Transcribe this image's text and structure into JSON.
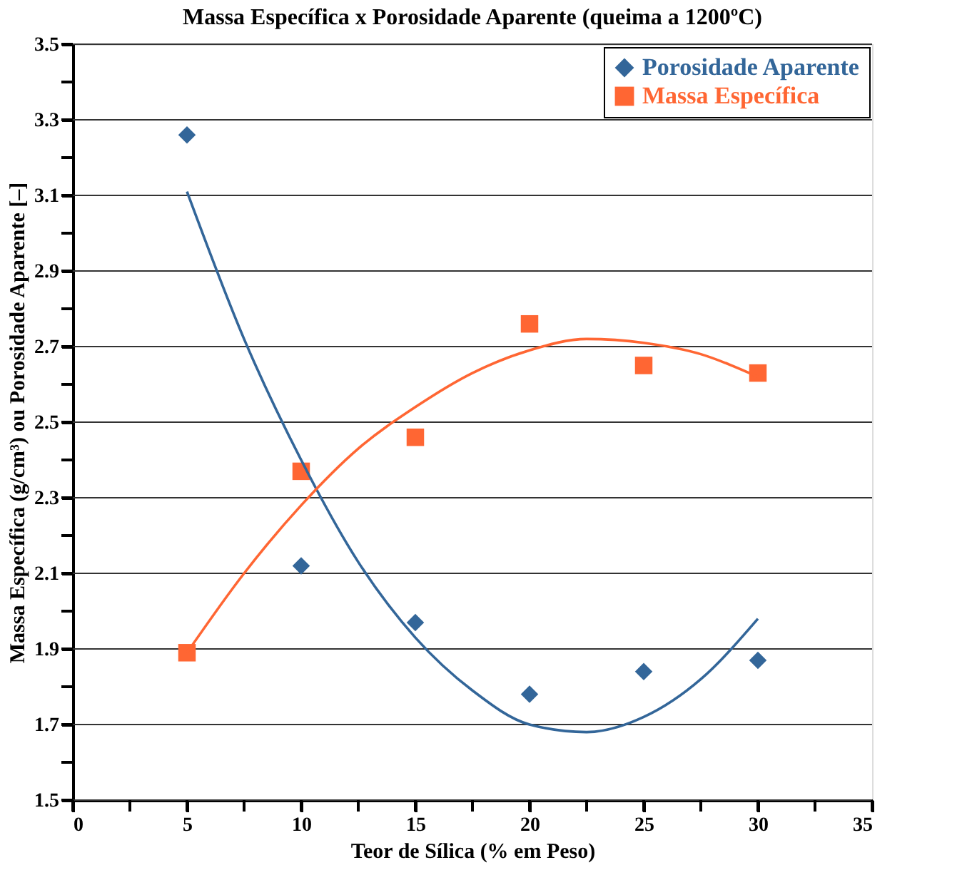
{
  "chart_data": {
    "type": "scatter",
    "title": "Massa Específica x Porosidade Aparente (queima a 1200ºC)",
    "xlabel": "Teor de Sílica (% em Peso)",
    "ylabel": "Massa Específica (g/cm³) ou Porosidade Aparente [–]",
    "x": [
      5,
      10,
      15,
      20,
      25,
      30
    ],
    "series": [
      {
        "name": "Porosidade Aparente",
        "color": "#336699",
        "marker": "diamond",
        "values": [
          3.26,
          2.12,
          1.97,
          1.78,
          1.84,
          1.87
        ]
      },
      {
        "name": "Massa Específica",
        "color": "#ff6633",
        "marker": "square",
        "values": [
          1.89,
          2.37,
          2.46,
          2.76,
          2.65,
          2.63
        ]
      },
      {
        "type": "line",
        "color": "#336699",
        "x": [
          5,
          7.5,
          10,
          12.5,
          15,
          17.5,
          20,
          22.5,
          25,
          27.5,
          30
        ],
        "values": [
          3.11,
          2.72,
          2.4,
          2.13,
          1.93,
          1.79,
          1.7,
          1.68,
          1.72,
          1.82,
          1.98
        ]
      },
      {
        "type": "line",
        "color": "#ff6633",
        "x": [
          5,
          7.5,
          10,
          12.5,
          15,
          17.5,
          20,
          22.5,
          25,
          27.5,
          30
        ],
        "values": [
          1.89,
          2.1,
          2.28,
          2.43,
          2.54,
          2.63,
          2.69,
          2.72,
          2.71,
          2.68,
          2.62
        ]
      }
    ],
    "xlim": [
      0,
      35
    ],
    "xticks": [
      0,
      {
        "value": 2.5,
        "label": null
      },
      5,
      {
        "value": 7.5,
        "label": null
      },
      10,
      {
        "value": 12.5,
        "label": null
      },
      15,
      {
        "value": 17.5,
        "label": null
      },
      20,
      {
        "value": 22.5,
        "label": null
      },
      25,
      {
        "value": 27.5,
        "label": null
      },
      30,
      {
        "value": 32.5,
        "label": null
      },
      35
    ],
    "ylim": [
      1.5,
      3.5
    ],
    "yticks": [
      1.5,
      {
        "value": 1.6,
        "label": null
      },
      1.7,
      {
        "value": 1.8,
        "label": null
      },
      1.9,
      {
        "value": 2.0,
        "label": null
      },
      2.1,
      {
        "value": 2.2,
        "label": null
      },
      2.3,
      {
        "value": 2.4,
        "label": null
      },
      2.5,
      {
        "value": 2.6,
        "label": null
      },
      2.7,
      {
        "value": 2.8,
        "label": null
      },
      2.9,
      {
        "value": 3.0,
        "label": null
      },
      3.1,
      {
        "value": 3.2,
        "label": null
      },
      3.3,
      {
        "value": 3.4,
        "label": null
      },
      3.5
    ],
    "grid": "y",
    "legend": "top right",
    "line_style": "solid"
  }
}
